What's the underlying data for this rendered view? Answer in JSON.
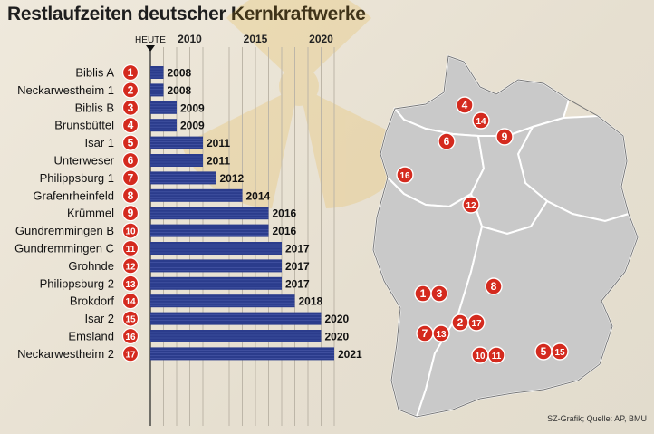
{
  "title": "Restlaufzeiten deutscher Kernkraftwerke",
  "source": "SZ-Grafik; Quelle: AP, BMU",
  "colors": {
    "bar": "#2b3c8c",
    "badge": "#d42a1e",
    "badge_text": "#ffffff",
    "map_fill": "#c9c9c9",
    "map_stroke": "#ffffff",
    "map_border": "#777777"
  },
  "chart_data": {
    "type": "bar",
    "orientation": "horizontal",
    "title": "Restlaufzeiten deutscher Kernkraftwerke",
    "axis_label": "HEUTE",
    "xticks": [
      "2010",
      "2015",
      "2020"
    ],
    "xtick_values": [
      2010,
      2015,
      2020
    ],
    "xlim": [
      2007,
      2021
    ],
    "grid": true,
    "plants": [
      {
        "id": "1",
        "name": "Biblis A",
        "year": 2008
      },
      {
        "id": "2",
        "name": "Neckarwestheim 1",
        "year": 2008
      },
      {
        "id": "3",
        "name": "Biblis B",
        "year": 2009
      },
      {
        "id": "4",
        "name": "Brunsbüttel",
        "year": 2009
      },
      {
        "id": "5",
        "name": "Isar 1",
        "year": 2011
      },
      {
        "id": "6",
        "name": "Unterweser",
        "year": 2011
      },
      {
        "id": "7",
        "name": "Philippsburg 1",
        "year": 2012
      },
      {
        "id": "8",
        "name": "Grafenrheinfeld",
        "year": 2014
      },
      {
        "id": "9",
        "name": "Krümmel",
        "year": 2016
      },
      {
        "id": "10",
        "name": "Gundremmingen B",
        "year": 2016
      },
      {
        "id": "11",
        "name": "Gundremmingen C",
        "year": 2017
      },
      {
        "id": "12",
        "name": "Grohnde",
        "year": 2017
      },
      {
        "id": "13",
        "name": "Philippsburg 2",
        "year": 2017
      },
      {
        "id": "14",
        "name": "Brokdorf",
        "year": 2018
      },
      {
        "id": "15",
        "name": "Isar 2",
        "year": 2020
      },
      {
        "id": "16",
        "name": "Emsland",
        "year": 2020
      },
      {
        "id": "17",
        "name": "Neckarwestheim 2",
        "year": 2021
      }
    ]
  },
  "map": {
    "markers": [
      "4",
      "14",
      "6",
      "9",
      "16",
      "12",
      "1",
      "3",
      "8",
      "2",
      "17",
      "7",
      "13",
      "10",
      "11",
      "5",
      "15"
    ]
  }
}
